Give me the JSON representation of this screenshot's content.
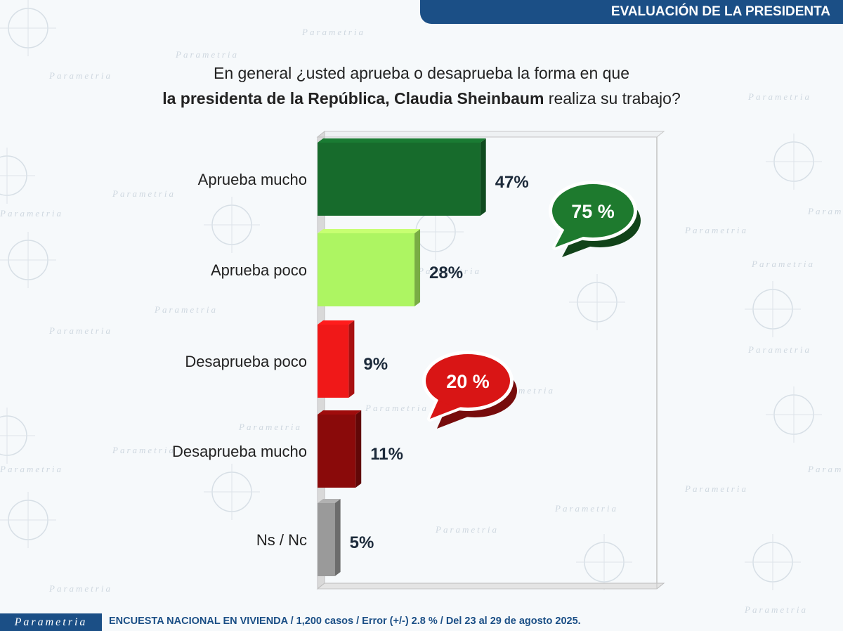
{
  "header": {
    "section_title": "EVALUACIÓN DE LA PRESIDENTA"
  },
  "question": {
    "line1": "En general ¿usted aprueba o desaprueba la forma en que",
    "line2_bold": "la presidenta de la República, Claudia Sheinbaum",
    "line2_rest": " realiza su trabajo?"
  },
  "chart_data": {
    "type": "bar",
    "orientation": "horizontal",
    "categories": [
      "Aprueba mucho",
      "Aprueba poco",
      "Desaprueba poco",
      "Desaprueba mucho",
      "Ns / Nc"
    ],
    "values": [
      47,
      28,
      9,
      11,
      5
    ],
    "value_labels": [
      "47%",
      "28%",
      "9%",
      "11%",
      "5%"
    ],
    "colors": [
      "#176b2c",
      "#adf562",
      "#f01818",
      "#8a0a0a",
      "#9a9a9a"
    ],
    "xlim": [
      0,
      100
    ],
    "grid": false,
    "annotations": [
      {
        "text": "75 %",
        "color": "#1e7a2e",
        "applies_to": [
          "Aprueba mucho",
          "Aprueba poco"
        ]
      },
      {
        "text": "20 %",
        "color": "#d91515",
        "applies_to": [
          "Desaprueba poco",
          "Desaprueba mucho"
        ]
      }
    ]
  },
  "watermark": {
    "text": "Parametria"
  },
  "footer": {
    "logo": "Parametria",
    "source": "ENCUESTA NACIONAL EN VIVIENDA / 1,200 casos / Error (+/-) 2.8 % / Del 23 al 29 de agosto 2025."
  }
}
